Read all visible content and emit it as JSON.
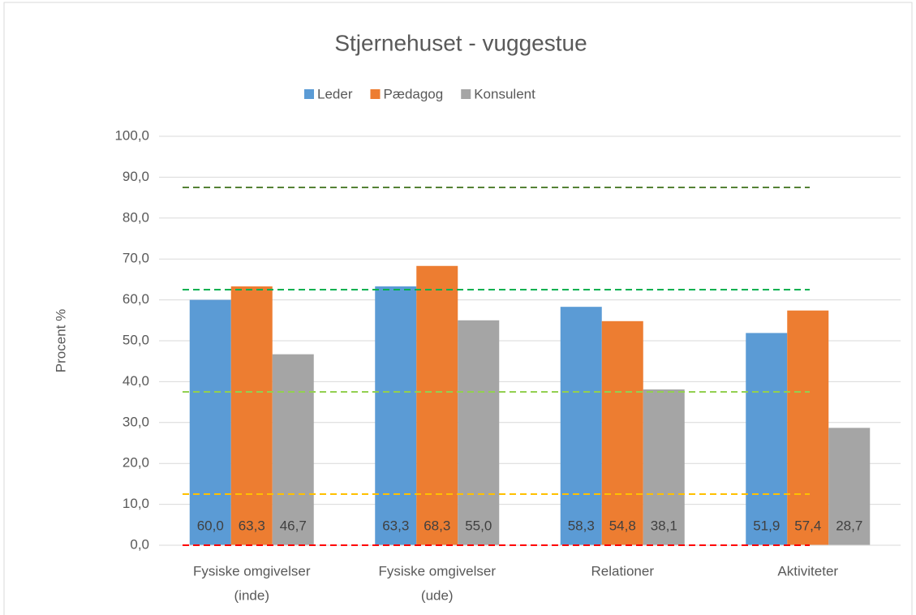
{
  "chart_data": {
    "type": "bar",
    "title": "Stjernehuset - vuggestue",
    "y_label": "Procent %",
    "categories": [
      [
        "Fysiske omgivelser",
        "(inde)"
      ],
      [
        "Fysiske omgivelser",
        "(ude)"
      ],
      [
        "Relationer"
      ],
      [
        "Aktiviteter"
      ]
    ],
    "series": [
      {
        "name": "Leder",
        "color": "#5b9bd5",
        "values": [
          60.0,
          63.3,
          58.3,
          51.9
        ],
        "value_labels": [
          "60,0",
          "63,3",
          "58,3",
          "51,9"
        ]
      },
      {
        "name": "Pædagog",
        "color": "#ed7d31",
        "values": [
          63.3,
          68.3,
          54.8,
          57.4
        ],
        "value_labels": [
          "63,3",
          "68,3",
          "54,8",
          "57,4"
        ]
      },
      {
        "name": "Konsulent",
        "color": "#a5a5a5",
        "values": [
          46.7,
          55.0,
          38.1,
          28.7
        ],
        "value_labels": [
          "46,7",
          "55,0",
          "38,1",
          "28,7"
        ]
      }
    ],
    "ylim": [
      0,
      100
    ],
    "yticks": [
      {
        "value": 0,
        "label": "0,0"
      },
      {
        "value": 10,
        "label": "10,0"
      },
      {
        "value": 20,
        "label": "20,0"
      },
      {
        "value": 30,
        "label": "30,0"
      },
      {
        "value": 40,
        "label": "40,0"
      },
      {
        "value": 50,
        "label": "50,0"
      },
      {
        "value": 60,
        "label": "60,0"
      },
      {
        "value": 70,
        "label": "70,0"
      },
      {
        "value": 80,
        "label": "80,0"
      },
      {
        "value": 90,
        "label": "90,0"
      },
      {
        "value": 100,
        "label": "100,0"
      }
    ],
    "grid": true,
    "legend": "top",
    "reference_lines": [
      {
        "value": 87.5,
        "color": "#548235"
      },
      {
        "value": 62.5,
        "color": "#00b050"
      },
      {
        "value": 37.5,
        "color": "#92d050"
      },
      {
        "value": 12.5,
        "color": "#ffc000"
      },
      {
        "value": 0,
        "color": "#ff0000"
      }
    ]
  }
}
